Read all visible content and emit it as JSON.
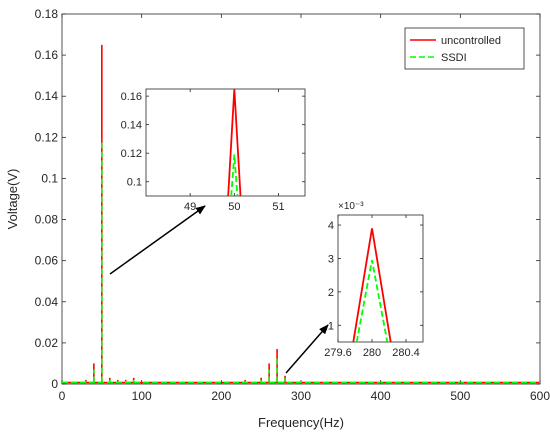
{
  "colors": {
    "uncontrolled": "#ff0000",
    "ssdi": "#00ff00",
    "axis": "#262626",
    "arrow": "#000000"
  },
  "chart_data": [
    {
      "type": "line",
      "role": "main",
      "xlabel": "Frequency(Hz)",
      "ylabel": "Voltage(V)",
      "xlim": [
        0,
        600
      ],
      "ylim": [
        0,
        0.18
      ],
      "xticks": [
        0,
        100,
        200,
        300,
        400,
        500,
        600
      ],
      "yticks": [
        0,
        0.02,
        0.04,
        0.06,
        0.08,
        0.1,
        0.12,
        0.14,
        0.16,
        0.18
      ],
      "ytick_labels": [
        "0",
        "0.02",
        "0.04",
        "0.06",
        "0.08",
        "0.1",
        "0.12",
        "0.14",
        "0.16",
        "0.18"
      ],
      "grid": false,
      "legend_position": "top-right",
      "series": [
        {
          "name": "uncontrolled",
          "style": "solid",
          "color": "#ff0000",
          "x": [
            10,
            20,
            30,
            40,
            50,
            60,
            70,
            80,
            90,
            100,
            210,
            230,
            250,
            260,
            270,
            280,
            290,
            400,
            500
          ],
          "y": [
            0.001,
            0.001,
            0.002,
            0.01,
            0.165,
            0.003,
            0.002,
            0.002,
            0.003,
            0.001,
            0.001,
            0.002,
            0.003,
            0.01,
            0.017,
            0.004,
            0.001,
            0.001,
            0.001
          ]
        },
        {
          "name": "SSDI",
          "style": "dashed",
          "color": "#00ff00",
          "x": [
            10,
            20,
            30,
            40,
            50,
            60,
            70,
            80,
            90,
            100,
            210,
            230,
            250,
            260,
            270,
            280,
            290,
            400,
            500
          ],
          "y": [
            0.0008,
            0.0008,
            0.0015,
            0.007,
            0.119,
            0.002,
            0.0015,
            0.0015,
            0.002,
            0.0008,
            0.0008,
            0.0015,
            0.002,
            0.007,
            0.013,
            0.003,
            0.0008,
            0.0008,
            0.0008
          ]
        }
      ]
    },
    {
      "type": "line",
      "role": "inset-50hz",
      "xlim": [
        48,
        51.6
      ],
      "ylim": [
        0.09,
        0.165
      ],
      "xticks": [
        49,
        50,
        51
      ],
      "yticks": [
        0.1,
        0.12,
        0.14,
        0.16
      ],
      "ytick_labels": [
        "0.1",
        "0.12",
        "0.14",
        "0.16"
      ],
      "series": [
        {
          "name": "uncontrolled",
          "style": "solid",
          "color": "#ff0000",
          "x": [
            49.86,
            50,
            50.14
          ],
          "y": [
            0.09,
            0.165,
            0.09
          ]
        },
        {
          "name": "SSDI",
          "style": "dashed",
          "color": "#00ff00",
          "x": [
            49.93,
            50,
            50.07
          ],
          "y": [
            0.09,
            0.119,
            0.09
          ]
        }
      ]
    },
    {
      "type": "line",
      "role": "inset-280hz",
      "xlim": [
        279.6,
        280.6
      ],
      "ylim": [
        0.5,
        4.3
      ],
      "exponent_label": "×10⁻³",
      "xticks": [
        279.6,
        280,
        280.4
      ],
      "xtick_labels": [
        "279.6",
        "280",
        "280.4"
      ],
      "yticks": [
        1,
        2,
        3,
        4
      ],
      "ytick_labels": [
        "1",
        "2",
        "3",
        "4"
      ],
      "series": [
        {
          "name": "uncontrolled",
          "style": "solid",
          "color": "#ff0000",
          "x": [
            279.78,
            280,
            280.22
          ],
          "y": [
            0.5,
            3.9,
            0.5
          ]
        },
        {
          "name": "SSDI",
          "style": "dashed",
          "color": "#00ff00",
          "x": [
            279.82,
            280,
            280.18
          ],
          "y": [
            0.5,
            2.95,
            0.5
          ]
        }
      ]
    }
  ]
}
